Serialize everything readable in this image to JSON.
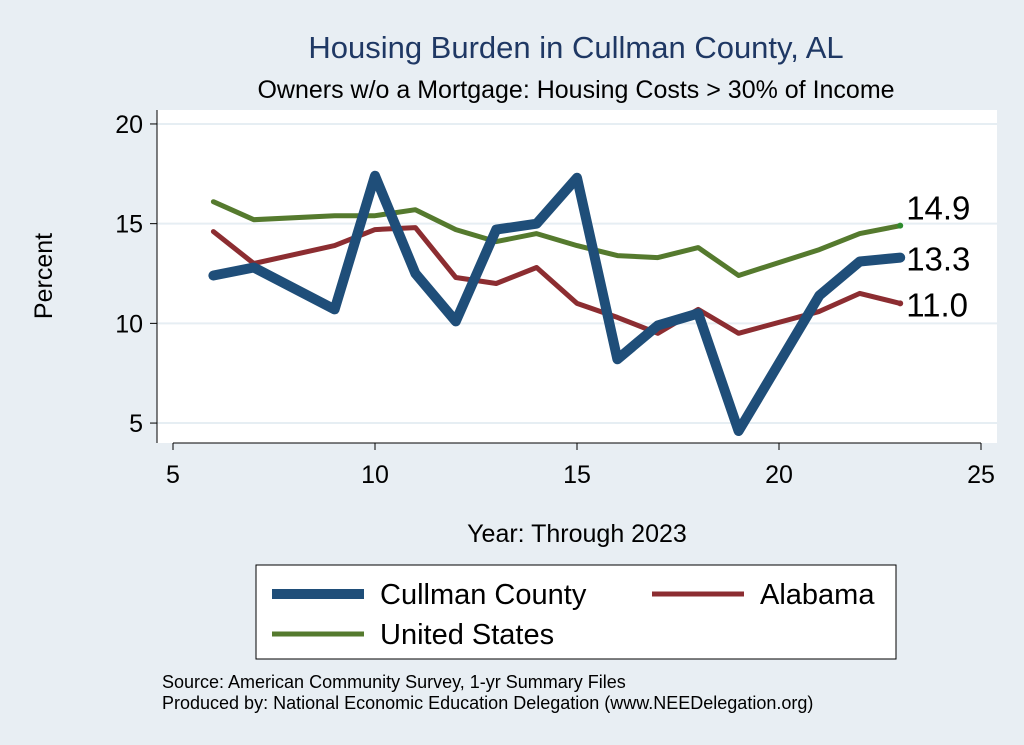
{
  "chart_data": {
    "type": "line",
    "title": "Housing Burden in Cullman County, AL",
    "subtitle": "Owners w/o a Mortgage: Housing Costs > 30% of Income",
    "xlabel": "Year: Through 2023",
    "ylabel": "Percent",
    "xlim": [
      5,
      25
    ],
    "ylim": [
      4,
      20.7
    ],
    "xticks": [
      5,
      10,
      15,
      20,
      25
    ],
    "yticks": [
      5,
      10,
      15,
      20
    ],
    "grid": true,
    "series": [
      {
        "name": "Cullman County",
        "color": "#1f4e79",
        "x": [
          6,
          7,
          9,
          10,
          11,
          12,
          13,
          14,
          15,
          16,
          17,
          18,
          19,
          21,
          22,
          23
        ],
        "values": [
          12.4,
          12.8,
          10.7,
          17.4,
          12.5,
          10.1,
          14.7,
          15.0,
          17.3,
          8.2,
          9.9,
          10.5,
          4.6,
          11.4,
          13.1,
          13.3
        ],
        "end_label": "13.3"
      },
      {
        "name": "Alabama",
        "color": "#8c2d31",
        "x": [
          6,
          7,
          9,
          10,
          11,
          12,
          13,
          14,
          15,
          16,
          17,
          18,
          19,
          21,
          22,
          23
        ],
        "values": [
          14.6,
          13.0,
          13.9,
          14.7,
          14.8,
          12.3,
          12.0,
          12.8,
          11.0,
          10.3,
          9.5,
          10.7,
          9.5,
          10.6,
          11.5,
          11.0
        ],
        "end_label": "11.0"
      },
      {
        "name": "United States",
        "color": "#557a2e",
        "x": [
          6,
          7,
          9,
          10,
          11,
          12,
          13,
          14,
          15,
          16,
          17,
          18,
          19,
          21,
          22,
          23
        ],
        "values": [
          16.1,
          15.2,
          15.4,
          15.4,
          15.7,
          14.7,
          14.1,
          14.5,
          13.9,
          13.4,
          13.3,
          13.8,
          12.4,
          13.7,
          14.5,
          14.9
        ],
        "end_label": "14.9"
      }
    ],
    "legend": {
      "position": "bottom",
      "items": [
        "Cullman County",
        "Alabama",
        "United States"
      ]
    }
  },
  "footer": {
    "source": "Source: American Community Survey, 1-yr Summary Files",
    "produced": "Produced by: National Economic Education Delegation (www.NEEDelegation.org)"
  },
  "colors": {
    "background": "#e8eef3",
    "plot_background": "#ffffff",
    "title": "#1f3864",
    "grid": "#e6eef3"
  }
}
